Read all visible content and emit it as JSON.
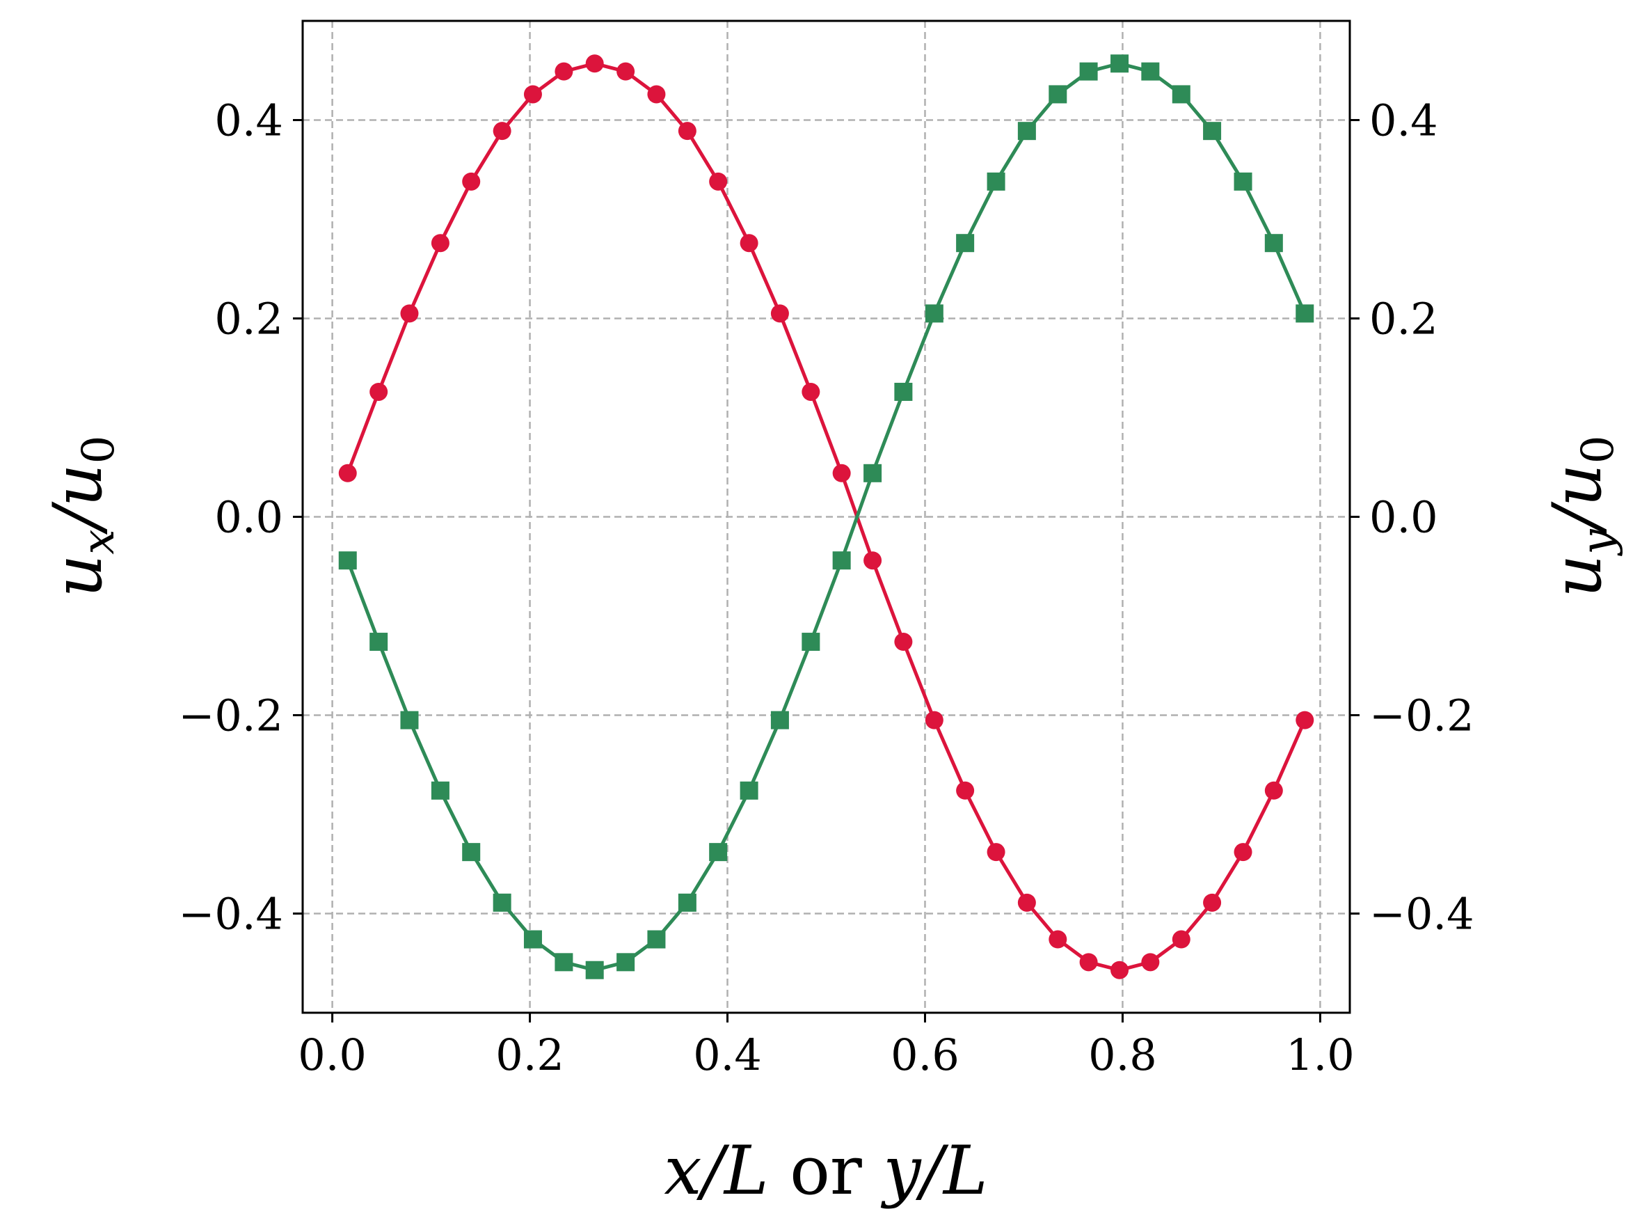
{
  "chart_data": {
    "type": "line",
    "xlabel": {
      "a": "x",
      "b": "/L ",
      "or": "or",
      "c": " y",
      "d": "/L"
    },
    "ylabel_left": {
      "main": "u",
      "sub": "x",
      "mid": "/u",
      "sub2": "0"
    },
    "ylabel_right": {
      "main": "u",
      "sub": "y",
      "mid": "/u",
      "sub2": "0"
    },
    "xlim": [
      -0.03,
      1.03
    ],
    "ylim": [
      -0.5,
      0.5
    ],
    "xticks": [
      0.0,
      0.2,
      0.4,
      0.6,
      0.8,
      1.0
    ],
    "xtick_labels": [
      "0.0",
      "0.2",
      "0.4",
      "0.6",
      "0.8",
      "1.0"
    ],
    "yticks": [
      -0.4,
      -0.2,
      0.0,
      0.2,
      0.4
    ],
    "ytick_labels": [
      "−0.4",
      "−0.2",
      "0.0",
      "0.2",
      "0.4"
    ],
    "grid": true,
    "x": [
      0.0156,
      0.0469,
      0.0781,
      0.1094,
      0.1406,
      0.1719,
      0.2031,
      0.2344,
      0.2656,
      0.2969,
      0.3281,
      0.3594,
      0.3906,
      0.4219,
      0.4531,
      0.4844,
      0.5156,
      0.5469,
      0.5781,
      0.6094,
      0.6406,
      0.6719,
      0.7031,
      0.7344,
      0.7656,
      0.7969,
      0.8281,
      0.8594,
      0.8906,
      0.9219,
      0.9531,
      0.9844
    ],
    "series": [
      {
        "color": "#dc143c",
        "marker": "circle",
        "axis": "left",
        "values": [
          0.044,
          0.126,
          0.205,
          0.276,
          0.338,
          0.389,
          0.426,
          0.449,
          0.457,
          0.449,
          0.426,
          0.389,
          0.338,
          0.276,
          0.205,
          0.126,
          0.044,
          -0.044,
          -0.126,
          -0.205,
          -0.276,
          -0.338,
          -0.389,
          -0.426,
          -0.449,
          -0.457,
          -0.449,
          -0.426,
          -0.389,
          -0.338,
          -0.276,
          -0.205
        ]
      },
      {
        "color": "#2e8b57",
        "marker": "square",
        "axis": "right",
        "values": [
          -0.044,
          -0.126,
          -0.205,
          -0.276,
          -0.338,
          -0.389,
          -0.426,
          -0.449,
          -0.457,
          -0.449,
          -0.426,
          -0.389,
          -0.338,
          -0.276,
          -0.205,
          -0.126,
          -0.044,
          0.044,
          0.126,
          0.205,
          0.276,
          0.338,
          0.389,
          0.426,
          0.449,
          0.457,
          0.449,
          0.426,
          0.389,
          0.338,
          0.276,
          0.205
        ]
      }
    ]
  }
}
